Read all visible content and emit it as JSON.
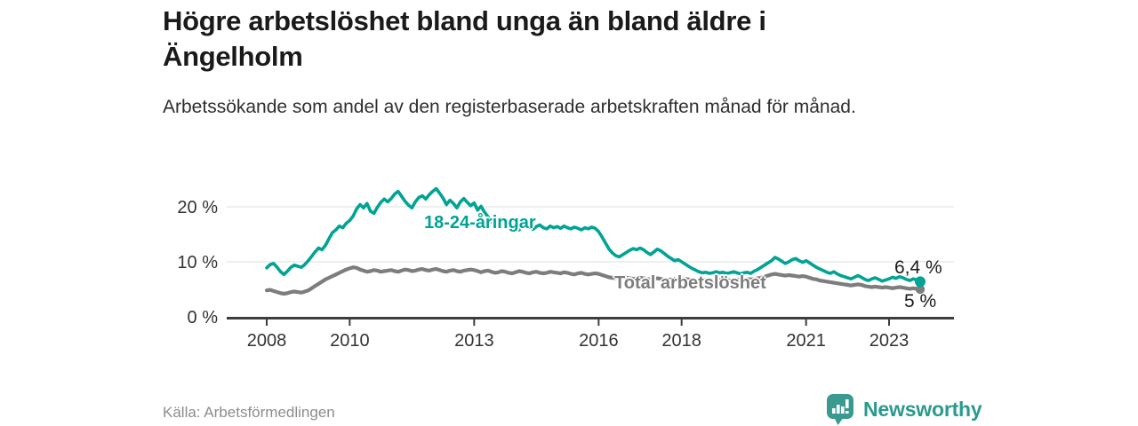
{
  "header": {
    "title": "Högre arbetslöshet bland unga än bland äldre i Ängelholm",
    "subtitle": "Arbetssökande som andel av den registerbaserade arbetskraften månad för månad."
  },
  "footer": {
    "source": "Källa: Arbetsförmedlingen",
    "brand": "Newsworthy"
  },
  "colors": {
    "accent_teal": "#00a394",
    "line_gray": "#7d7d7d",
    "grid": "#dcdcdc",
    "axis": "#3d3d3d",
    "logo_teal": "#3a9a90"
  },
  "chart_data": {
    "type": "line",
    "unit": "%",
    "x_start_year": 2008,
    "months_per_point": 1,
    "x_ticks": [
      2008,
      2010,
      2013,
      2016,
      2018,
      2021,
      2023
    ],
    "y_ticks": [
      0,
      10,
      20
    ],
    "y_tick_labels": [
      "0 %",
      "10 %",
      "20 %"
    ],
    "ylim": [
      0,
      24
    ],
    "grid": true,
    "legend_position": "inline-labels",
    "series": [
      {
        "name": "18-24-åringar",
        "color": "#00a394",
        "end_label": "6,4 %",
        "end_value": 6.4,
        "values": [
          8.9,
          9.5,
          9.7,
          9.0,
          8.2,
          7.7,
          8.3,
          9.0,
          9.4,
          9.2,
          9.0,
          9.5,
          10.2,
          11.0,
          11.8,
          12.5,
          12.2,
          13.0,
          14.2,
          15.3,
          15.8,
          16.5,
          16.2,
          17.0,
          17.5,
          18.3,
          19.6,
          20.4,
          19.8,
          20.6,
          19.2,
          18.8,
          19.9,
          20.8,
          21.4,
          20.9,
          21.5,
          22.3,
          22.8,
          21.9,
          21.0,
          20.3,
          19.8,
          20.9,
          21.7,
          22.0,
          21.4,
          22.2,
          22.8,
          23.3,
          22.5,
          21.6,
          20.4,
          21.2,
          20.6,
          19.8,
          20.9,
          21.5,
          20.8,
          20.2,
          20.7,
          19.4,
          20.1,
          19.0,
          18.2,
          17.3,
          16.5,
          17.2,
          17.8,
          17.1,
          16.4,
          16.8,
          16.2,
          15.8,
          16.5,
          16.9,
          16.3,
          15.9,
          16.4,
          16.7,
          16.2,
          16.0,
          16.5,
          16.2,
          16.4,
          16.1,
          16.5,
          16.2,
          16.0,
          16.3,
          16.1,
          15.8,
          16.2,
          16.0,
          16.3,
          16.1,
          15.5,
          14.5,
          13.4,
          12.3,
          11.6,
          11.1,
          10.9,
          11.3,
          11.7,
          12.1,
          12.4,
          12.2,
          12.5,
          12.2,
          11.7,
          11.3,
          11.8,
          12.3,
          12.0,
          11.5,
          11.0,
          10.6,
          10.2,
          10.4,
          10.0,
          9.6,
          9.2,
          8.8,
          8.5,
          8.2,
          8.0,
          8.1,
          7.9,
          8.0,
          8.2,
          8.0,
          8.1,
          7.9,
          8.0,
          8.2,
          8.0,
          7.8,
          8.0,
          8.1,
          7.9,
          8.3,
          8.6,
          9.0,
          9.4,
          9.8,
          10.2,
          10.8,
          10.5,
          10.1,
          9.7,
          10.0,
          10.4,
          10.6,
          10.2,
          9.9,
          10.2,
          9.8,
          9.4,
          9.0,
          8.7,
          8.4,
          8.1,
          7.9,
          8.2,
          7.8,
          7.5,
          7.3,
          7.1,
          6.9,
          7.2,
          7.5,
          7.2,
          6.8,
          6.6,
          6.9,
          7.1,
          6.8,
          6.5,
          6.7,
          6.9,
          7.2,
          7.0,
          7.3,
          7.1,
          6.8,
          6.6,
          6.9,
          6.7,
          6.4
        ]
      },
      {
        "name": "Total arbetslöshet",
        "color": "#7d7d7d",
        "end_label": "5 %",
        "end_value": 5.0,
        "values": [
          4.8,
          4.9,
          4.7,
          4.5,
          4.3,
          4.2,
          4.3,
          4.5,
          4.6,
          4.5,
          4.4,
          4.6,
          4.8,
          5.2,
          5.6,
          6.0,
          6.4,
          6.8,
          7.1,
          7.4,
          7.7,
          8.0,
          8.3,
          8.6,
          8.8,
          9.0,
          8.9,
          8.6,
          8.4,
          8.2,
          8.3,
          8.5,
          8.4,
          8.2,
          8.3,
          8.4,
          8.5,
          8.3,
          8.2,
          8.4,
          8.6,
          8.5,
          8.3,
          8.4,
          8.6,
          8.7,
          8.5,
          8.4,
          8.6,
          8.7,
          8.5,
          8.3,
          8.2,
          8.4,
          8.5,
          8.3,
          8.2,
          8.4,
          8.5,
          8.6,
          8.5,
          8.3,
          8.1,
          8.3,
          8.4,
          8.2,
          8.0,
          8.1,
          8.3,
          8.2,
          8.0,
          7.9,
          8.1,
          8.3,
          8.2,
          8.0,
          7.9,
          8.1,
          8.2,
          8.0,
          7.9,
          8.0,
          8.2,
          8.1,
          8.0,
          7.9,
          8.1,
          8.0,
          7.8,
          7.7,
          7.9,
          8.0,
          7.8,
          7.7,
          7.8,
          7.9,
          7.8,
          7.6,
          7.4,
          7.2,
          7.1,
          7.0,
          7.1,
          7.2,
          7.1,
          7.0,
          6.9,
          7.0,
          7.1,
          7.0,
          6.9,
          6.8,
          6.9,
          7.0,
          6.9,
          6.8,
          6.7,
          6.8,
          6.9,
          6.8,
          7.0,
          6.9,
          6.8,
          6.7,
          6.6,
          6.5,
          6.6,
          6.7,
          6.6,
          6.5,
          6.6,
          6.7,
          6.8,
          6.7,
          6.6,
          6.7,
          6.8,
          6.7,
          6.8,
          6.9,
          6.8,
          6.9,
          7.0,
          7.1,
          7.3,
          7.5,
          7.7,
          7.8,
          7.7,
          7.6,
          7.5,
          7.6,
          7.5,
          7.4,
          7.3,
          7.4,
          7.3,
          7.1,
          6.9,
          6.8,
          6.6,
          6.5,
          6.4,
          6.3,
          6.2,
          6.1,
          6.0,
          5.9,
          5.8,
          5.7,
          5.8,
          5.9,
          5.8,
          5.6,
          5.5,
          5.4,
          5.5,
          5.4,
          5.3,
          5.4,
          5.3,
          5.2,
          5.3,
          5.4,
          5.3,
          5.2,
          5.1,
          5.2,
          5.1,
          5.0
        ]
      }
    ]
  }
}
